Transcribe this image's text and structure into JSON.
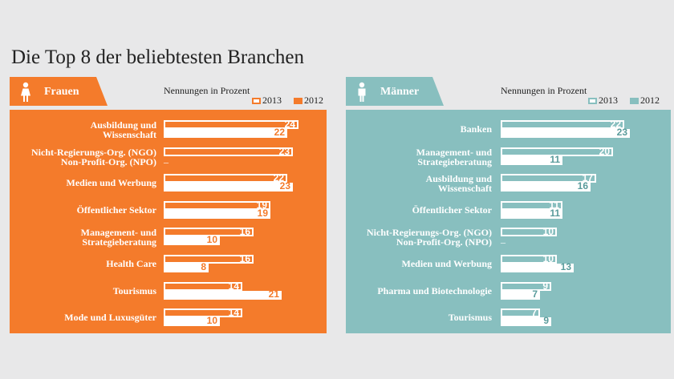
{
  "title": "Die Top 8 der beliebtesten Branchen",
  "colors": {
    "frauen": "#f47b2b",
    "maenner": "#88bfbf",
    "background": "#e8e8e9"
  },
  "chart_data": [
    {
      "type": "bar",
      "orientation": "horizontal",
      "group_label": "Frauen",
      "icon": "woman-icon",
      "axis_note": "Nennungen in Prozent",
      "legend": [
        "2013",
        "2012"
      ],
      "categories": [
        "Ausbildung und Wissenschaft",
        "Nicht-Regierungs-Org. (NGO) Non-Profit-Org. (NPO)",
        "Medien und Werbung",
        "Öffentlicher Sektor",
        "Management- und Strategieberatung",
        "Health Care",
        "Tourismus",
        "Mode und Luxusgüter"
      ],
      "category_lines": [
        [
          "Ausbildung und",
          "Wissenschaft"
        ],
        [
          "Nicht-Regierungs-Org. (NGO)",
          "Non-Profit-Org. (NPO)"
        ],
        [
          "Medien und Werbung"
        ],
        [
          "Öffentlicher Sektor"
        ],
        [
          "Management- und",
          "Strategieberatung"
        ],
        [
          "Health Care"
        ],
        [
          "Tourismus"
        ],
        [
          "Mode und Luxusgüter"
        ]
      ],
      "series": [
        {
          "name": "2013",
          "values": [
            24,
            23,
            22,
            19,
            16,
            16,
            14,
            14
          ]
        },
        {
          "name": "2012",
          "values": [
            22,
            null,
            23,
            19,
            10,
            8,
            21,
            10
          ]
        }
      ],
      "missing_marker": "–"
    },
    {
      "type": "bar",
      "orientation": "horizontal",
      "group_label": "Männer",
      "icon": "man-icon",
      "axis_note": "Nennungen in Prozent",
      "legend": [
        "2013",
        "2012"
      ],
      "categories": [
        "Banken",
        "Management- und Strategieberatung",
        "Ausbildung und Wissenschaft",
        "Öffentlicher Sektor",
        "Nicht-Regierungs-Org. (NGO) Non-Profit-Org. (NPO)",
        "Medien und Werbung",
        "Pharma und Biotechnologie",
        "Tourismus"
      ],
      "category_lines": [
        [
          "Banken"
        ],
        [
          "Management- und",
          "Strategieberatung"
        ],
        [
          "Ausbildung und",
          "Wissenschaft"
        ],
        [
          "Öffentlicher Sektor"
        ],
        [
          "Nicht-Regierungs-Org. (NGO)",
          "Non-Profit-Org. (NPO)"
        ],
        [
          "Medien und Werbung"
        ],
        [
          "Pharma und Biotechnologie"
        ],
        [
          "Tourismus"
        ]
      ],
      "series": [
        {
          "name": "2013",
          "values": [
            22,
            20,
            17,
            11,
            10,
            10,
            9,
            7
          ]
        },
        {
          "name": "2012",
          "values": [
            23,
            11,
            16,
            11,
            null,
            13,
            7,
            9
          ]
        }
      ],
      "missing_marker": "–"
    }
  ]
}
